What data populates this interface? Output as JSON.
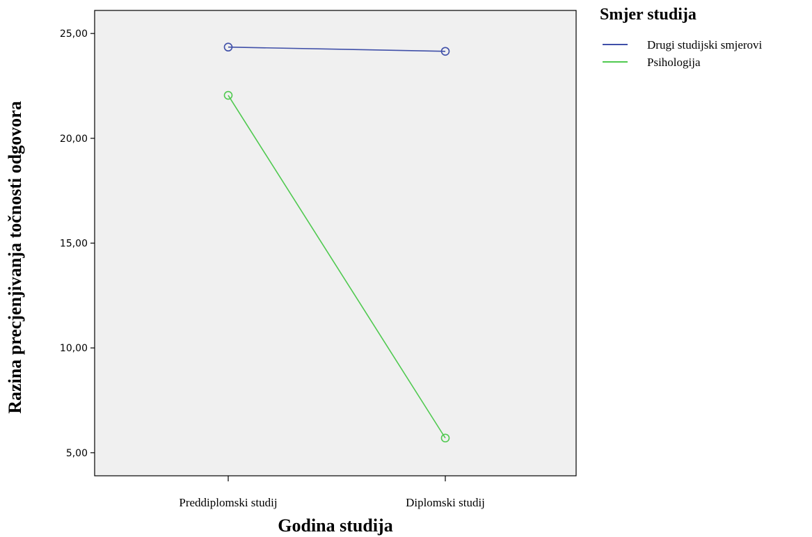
{
  "chart_data": {
    "type": "line",
    "categories": [
      "Preddiplomski studij",
      "Diplomski studij"
    ],
    "series": [
      {
        "name": "Drugi studijski smjerovi",
        "values": [
          24.35,
          24.15
        ],
        "color": "#3F4FA8"
      },
      {
        "name": "Psihologija",
        "values": [
          22.05,
          5.7
        ],
        "color": "#4FC94F"
      }
    ],
    "xlabel": "Godina studija",
    "ylabel": "Razina precjenjivanja točnosti odgovora",
    "ylim": [
      3.9,
      26.1
    ],
    "yticks": [
      {
        "value": 5,
        "label": "5,00"
      },
      {
        "value": 10,
        "label": "10,00"
      },
      {
        "value": 15,
        "label": "15,00"
      },
      {
        "value": 20,
        "label": "20,00"
      },
      {
        "value": 25,
        "label": "25,00"
      }
    ],
    "legend_title": "Smjer studija",
    "legend_position": "top-right",
    "grid": false,
    "plot_background": "#F0F0F0"
  }
}
